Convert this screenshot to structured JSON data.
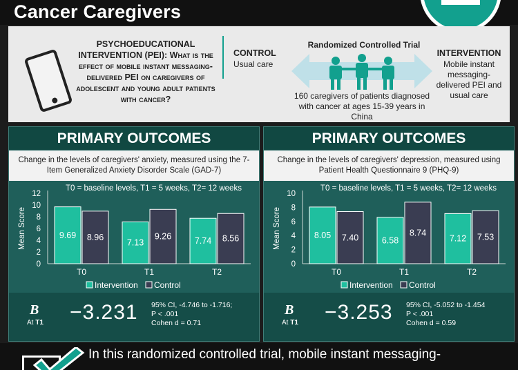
{
  "header": {
    "title": "Cancer Caregivers"
  },
  "icons": {
    "logo": "journal-logo-icon",
    "phone": "phone-icon",
    "people": "people-icon",
    "check": "checkmark-icon"
  },
  "colors": {
    "teal": "#12a08e",
    "intervention": "#1fbf9f",
    "control": "#3a3d52",
    "panel": "#1f5f5a"
  },
  "study": {
    "question": "PSYCHOEDUCATIONAL INTERVENTION (PEI): What is the effect of mobile instant messaging-delivered PEI on caregivers of adolescent and young adult patients with cancer?",
    "control_title": "CONTROL",
    "control_text": "Usual care",
    "rct_title": "Randomized Controlled Trial",
    "rct_text": "160 caregivers of patients diagnosed with cancer at ages 15-39 years in China",
    "intervention_title": "INTERVENTION",
    "intervention_text": "Mobile instant messaging-delivered PEI and usual care"
  },
  "outcomes": [
    {
      "heading": "PRIMARY OUTCOMES",
      "description": "Change in the levels of caregivers' anxiety, measured using the 7-Item Generalized Anxiety Disorder Scale (GAD-7)",
      "b_label": "B",
      "b_sub_prefix": "At ",
      "b_sub_time": "T1",
      "b_value": "−3.231",
      "ci_lines": [
        "95% CI, -4.746 to -1.716;",
        "P < .001",
        "Cohen d = 0.71"
      ]
    },
    {
      "heading": "PRIMARY OUTCOMES",
      "description": "Change in the levels of caregivers' depression, measured using Patient Health Questionnaire 9 (PHQ-9)",
      "b_label": "B",
      "b_sub_prefix": "At ",
      "b_sub_time": "T1",
      "b_value": "−3.253",
      "ci_lines": [
        "95% CI, -5.052 to -1.454",
        "P < .001",
        "Cohen d = 0.59"
      ]
    }
  ],
  "chart_data": [
    {
      "type": "bar",
      "annotation": "T0 = baseline levels, T1 = 5 weeks, T2=  12 weeks",
      "categories": [
        "T0",
        "T1",
        "T2"
      ],
      "series": [
        {
          "name": "Intervention",
          "values": [
            9.69,
            7.13,
            7.74
          ]
        },
        {
          "name": "Control",
          "values": [
            8.96,
            9.26,
            8.56
          ]
        }
      ],
      "value_labels": [
        [
          "9.69",
          "7.13",
          "7.74"
        ],
        [
          "8.96",
          "9.26",
          "8.56"
        ]
      ],
      "ylabel": "Mean Score",
      "ylim": [
        0,
        12
      ],
      "yticks": [
        0,
        2,
        4,
        6,
        8,
        10,
        12
      ],
      "legend": "bottom"
    },
    {
      "type": "bar",
      "annotation": "T0 = baseline levels, T1 = 5 weeks, T2=  12 weeks",
      "categories": [
        "T0",
        "T1",
        "T2"
      ],
      "series": [
        {
          "name": "Intervention",
          "values": [
            8.05,
            6.58,
            7.12
          ]
        },
        {
          "name": "Control",
          "values": [
            7.4,
            8.74,
            7.53
          ]
        }
      ],
      "value_labels": [
        [
          "8.05",
          "6.58",
          "7.12"
        ],
        [
          "7.40",
          "8.74",
          "7.53"
        ]
      ],
      "ylabel": "Mean Score",
      "ylim": [
        0,
        10
      ],
      "yticks": [
        0,
        2,
        4,
        6,
        8,
        10
      ],
      "legend": "bottom"
    }
  ],
  "conclusion": {
    "text": "In this randomized controlled trial, mobile instant messaging-"
  }
}
